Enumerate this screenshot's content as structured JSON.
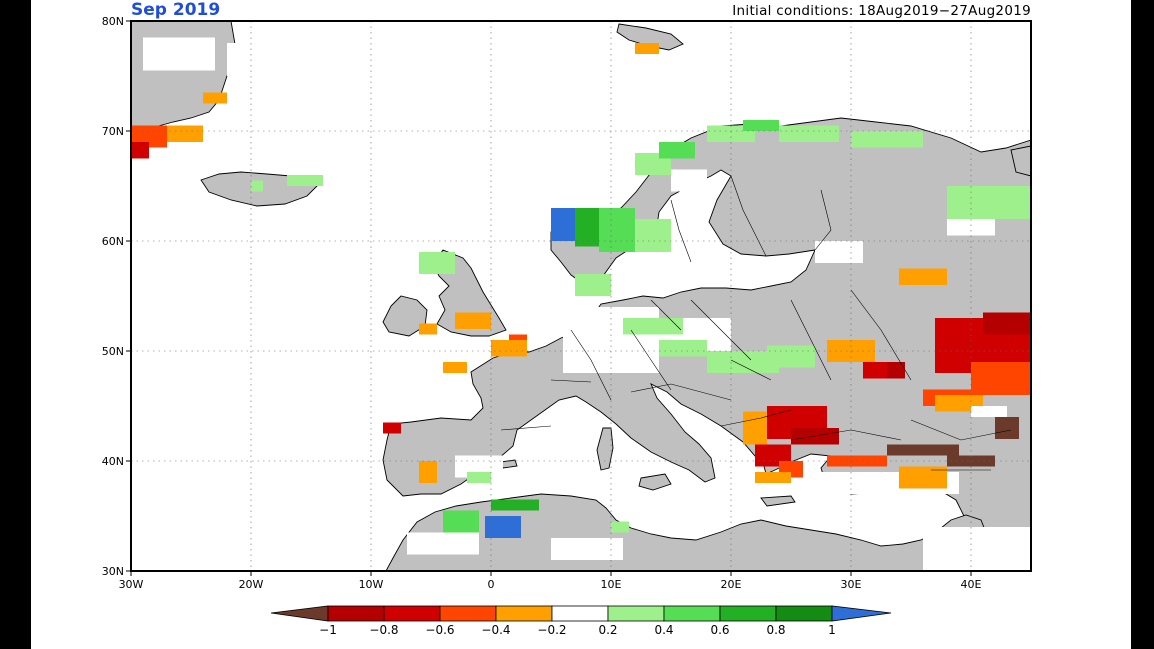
{
  "map": {
    "title": "Sep 2019",
    "subtitle": "Initial conditions: 18Aug2019−27Aug2019",
    "lat_labels": [
      "80N",
      "70N",
      "60N",
      "50N",
      "40N",
      "30N"
    ],
    "lon_labels": [
      "30W",
      "20W",
      "10W",
      "0",
      "10E",
      "20E",
      "30E",
      "40E"
    ],
    "extent": {
      "lon": [
        -30,
        45
      ],
      "lat": [
        30,
        80
      ]
    },
    "grid_lines": "dotted",
    "land_fill_color": "#c0c0c0",
    "ocean_fill_color": "#ffffff",
    "coastline_color": "#000000"
  },
  "colorbar": {
    "tick_labels": [
      "−1",
      "−0.8",
      "−0.6",
      "−0.4",
      "−0.2",
      "0.2",
      "0.4",
      "0.6",
      "0.8",
      "1"
    ],
    "low_end_color": "#6b3a2a",
    "high_end_color": "#2d6fd6",
    "bins": [
      {
        "range": "-1 to -0.8",
        "color": "#b50000"
      },
      {
        "range": "-0.8 to -0.6",
        "color": "#d10000"
      },
      {
        "range": "-0.6 to -0.4",
        "color": "#ff4500"
      },
      {
        "range": "-0.4 to -0.2",
        "color": "#ffa000"
      },
      {
        "range": "-0.2 to 0.2",
        "color": "#ffffff"
      },
      {
        "range": "0.2 to 0.4",
        "color": "#9ef08c"
      },
      {
        "range": "0.4 to 0.6",
        "color": "#55dd55"
      },
      {
        "range": "0.6 to 0.8",
        "color": "#24b024"
      },
      {
        "range": "0.8 to 1",
        "color": "#148c14"
      }
    ]
  }
}
